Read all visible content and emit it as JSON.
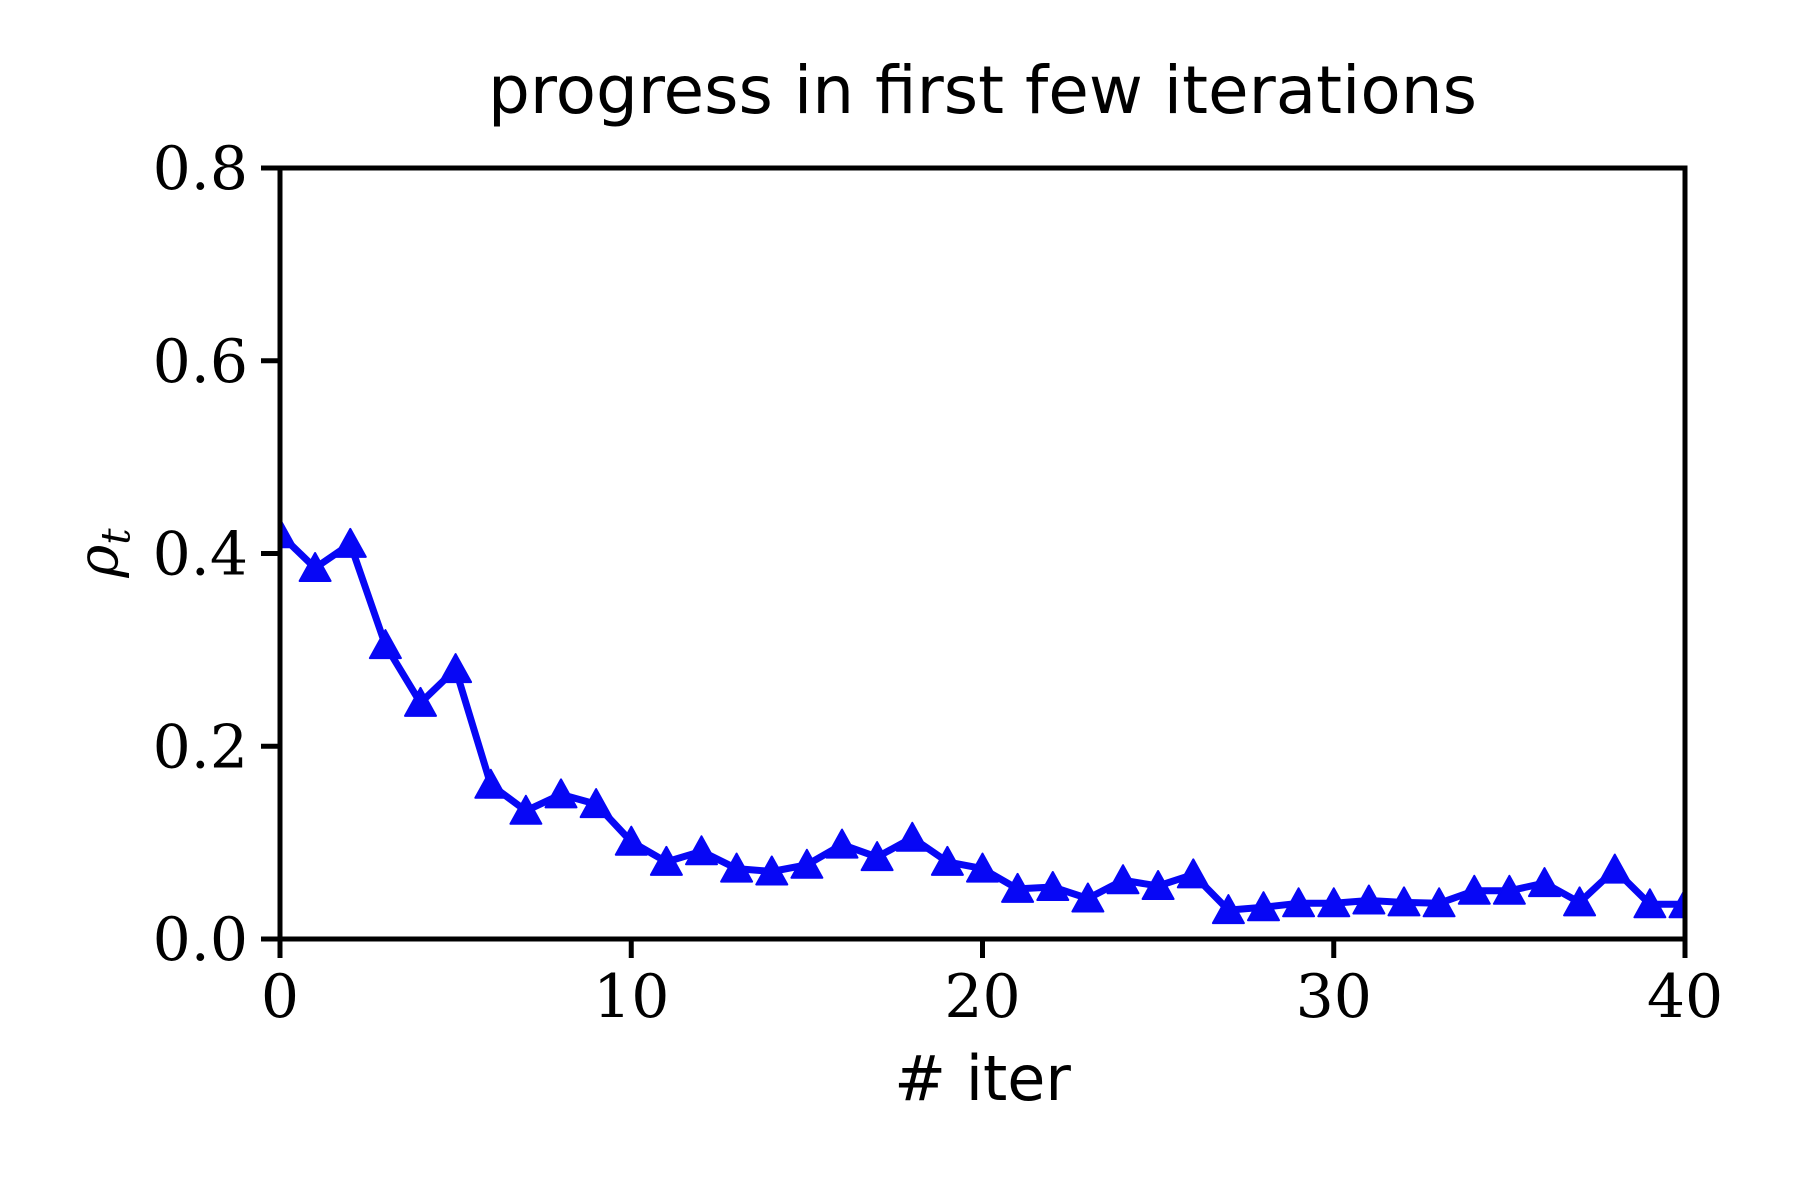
{
  "chart_data": {
    "type": "line",
    "title": "progress in first few iterations",
    "xlabel": "# iter",
    "ylabel": "ρt",
    "ylabel_parts": {
      "base": "ρ",
      "sub": "t"
    },
    "xlim": [
      0,
      40
    ],
    "ylim": [
      0.0,
      0.8
    ],
    "xticks": [
      0,
      10,
      20,
      30,
      40
    ],
    "xtick_labels": [
      "0",
      "10",
      "20",
      "30",
      "40"
    ],
    "yticks": [
      0.0,
      0.2,
      0.4,
      0.6,
      0.8
    ],
    "ytick_labels": [
      "0.0",
      "0.2",
      "0.4",
      "0.6",
      "0.8"
    ],
    "grid": false,
    "series": [
      {
        "name": "rho_t",
        "marker": "triangle-up",
        "color": "#0707f5",
        "x": [
          0,
          1,
          2,
          3,
          4,
          5,
          6,
          7,
          8,
          9,
          10,
          11,
          12,
          13,
          14,
          15,
          16,
          17,
          18,
          19,
          20,
          21,
          22,
          23,
          24,
          25,
          26,
          27,
          28,
          29,
          30,
          31,
          32,
          33,
          34,
          35,
          36,
          37,
          38,
          39,
          40
        ],
        "y": [
          0.42,
          0.385,
          0.41,
          0.305,
          0.245,
          0.28,
          0.16,
          0.133,
          0.15,
          0.14,
          0.101,
          0.08,
          0.091,
          0.073,
          0.07,
          0.077,
          0.098,
          0.085,
          0.105,
          0.08,
          0.073,
          0.052,
          0.054,
          0.042,
          0.061,
          0.055,
          0.067,
          0.03,
          0.033,
          0.037,
          0.037,
          0.04,
          0.038,
          0.037,
          0.05,
          0.05,
          0.058,
          0.038,
          0.072,
          0.036,
          0.036
        ]
      }
    ]
  },
  "colors": {
    "line": "#0707f5",
    "axes": "#000000",
    "background": "#ffffff"
  }
}
